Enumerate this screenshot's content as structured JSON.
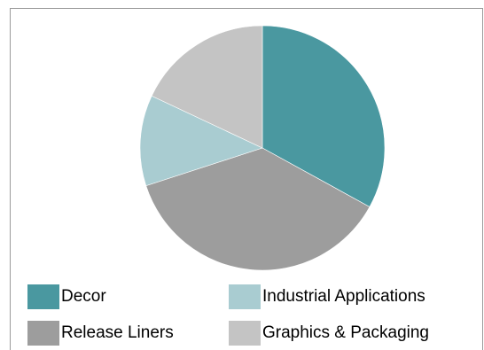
{
  "chart_data": {
    "type": "pie",
    "title": "",
    "start_angle_deg": 0,
    "direction": "clockwise",
    "categories": [
      "Decor",
      "Release Liners",
      "Industrial Applications",
      "Graphics & Packaging"
    ],
    "values": [
      33,
      37,
      12,
      18
    ],
    "colors": [
      "#4a98a0",
      "#9d9d9d",
      "#a9ccd1",
      "#c4c4c4"
    ],
    "legend_placement": "bottom",
    "legend": [
      {
        "label": "Decor",
        "color": "#4a98a0"
      },
      {
        "label": "Industrial Applications",
        "color": "#a9ccd1"
      },
      {
        "label": "Release Liners",
        "color": "#9d9d9d"
      },
      {
        "label": "Graphics & Packaging",
        "color": "#c4c4c4"
      }
    ]
  }
}
